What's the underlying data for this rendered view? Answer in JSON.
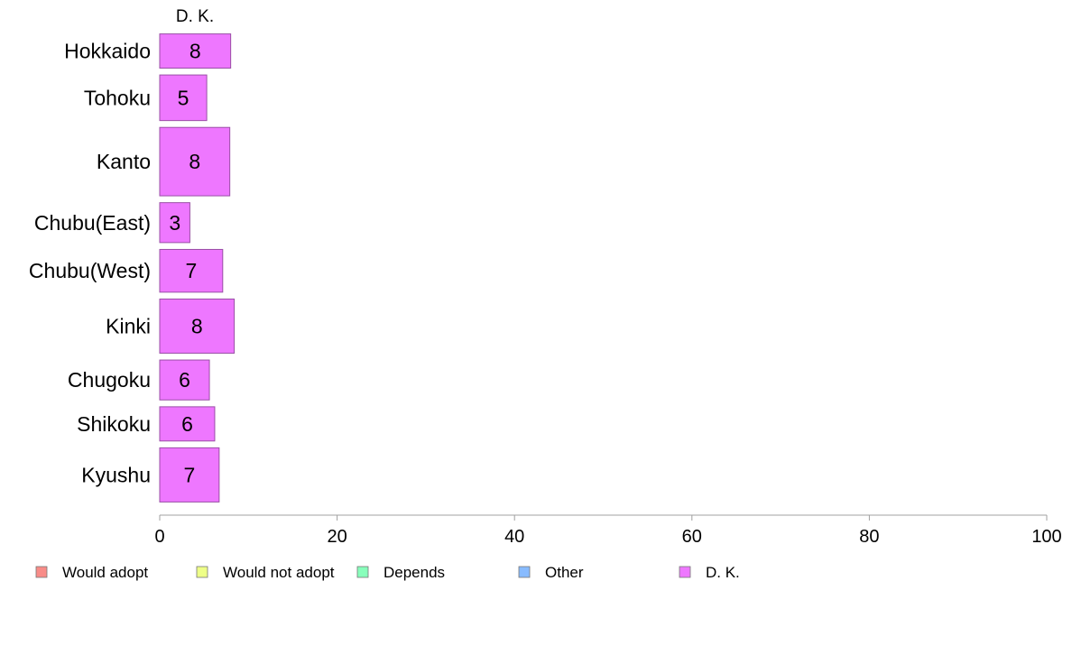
{
  "chart_data": {
    "type": "bar",
    "orientation": "horizontal",
    "stacked": true,
    "column_header": "D. K.",
    "categories": [
      "Hokkaido",
      "Tohoku",
      "Kanto",
      "Chubu(East)",
      "Chubu(West)",
      "Kinki",
      "Chugoku",
      "Shikoku",
      "Kyushu"
    ],
    "category_widths": [
      0.6,
      0.8,
      1.2,
      0.7,
      0.75,
      0.95,
      0.7,
      0.6,
      0.95
    ],
    "series": [
      {
        "name": "D. K.",
        "color": "#ee77ff",
        "values": [
          8,
          5.3,
          7.9,
          3.4,
          7.1,
          8.4,
          5.6,
          6.2,
          6.7
        ],
        "labels": [
          "8",
          "5",
          "8",
          "3",
          "7",
          "8",
          "6",
          "6",
          "7"
        ]
      }
    ],
    "xlim": [
      0,
      100
    ],
    "xticks": [
      0,
      20,
      40,
      60,
      80,
      100
    ],
    "grid": false,
    "legend": {
      "placement": "bottom",
      "entries": [
        {
          "name": "Would adopt",
          "color": "#f88c88"
        },
        {
          "name": "Would not adopt",
          "color": "#eeff88"
        },
        {
          "name": "Depends",
          "color": "#88ffbb"
        },
        {
          "name": "Other",
          "color": "#88bbff"
        },
        {
          "name": "D. K.",
          "color": "#ee77ff"
        }
      ]
    }
  }
}
